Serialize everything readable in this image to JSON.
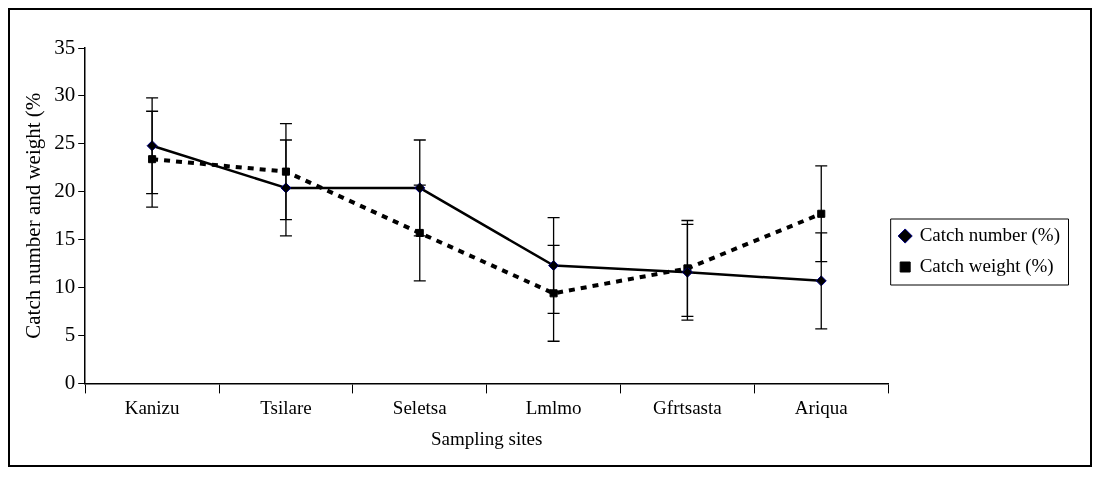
{
  "chart_data": {
    "type": "line",
    "xlabel": "Sampling sites",
    "ylabel": "Catch number and weight (%",
    "categories": [
      "Kanizu",
      "Tsilare",
      "Seletsa",
      "Lmlmo",
      "Gfrtsasta",
      "Ariqua"
    ],
    "series": [
      {
        "name": "Catch number (%)",
        "color": "#000000",
        "values": [
          24.8,
          20.4,
          20.4,
          12.3,
          11.6,
          10.7
        ],
        "errors": [
          5,
          5,
          5,
          5,
          5,
          5
        ],
        "marker": "diamond",
        "line_style": "solid"
      },
      {
        "name": "Catch weight (%)",
        "color": "#000000",
        "values": [
          23.4,
          22.1,
          15.7,
          9.4,
          12.0,
          17.7
        ],
        "errors": [
          5,
          5,
          5,
          5,
          5,
          5
        ],
        "marker": "square",
        "line_style": "dotted"
      }
    ],
    "ylim": [
      0,
      35
    ],
    "yticks": [
      0,
      5,
      10,
      15,
      20,
      25,
      30,
      35
    ],
    "legend": "right"
  }
}
